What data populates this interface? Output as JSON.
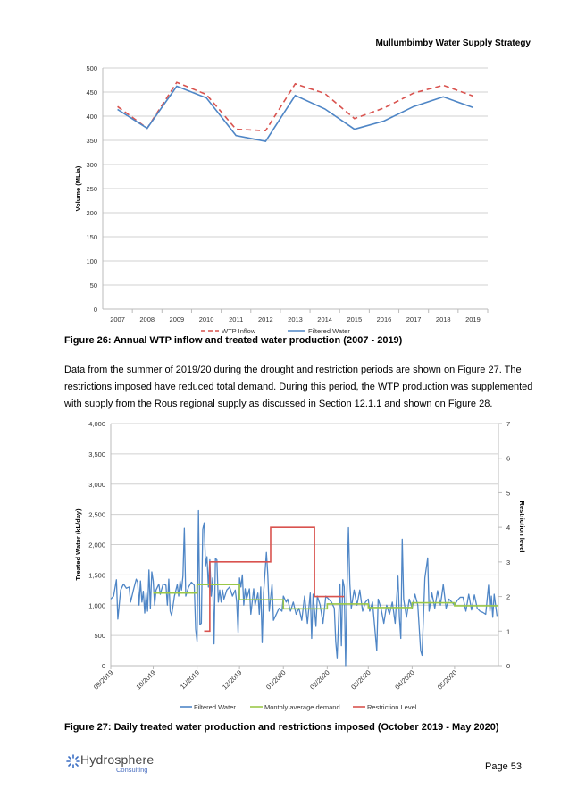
{
  "header": {
    "title": "Mullumbimby Water Supply Strategy"
  },
  "figure26": {
    "caption": "Figure 26: Annual WTP inflow and treated water production (2007 - 2019)"
  },
  "paragraph": "Data from the summer of 2019/20 during the drought and restriction periods are shown on Figure 27. The restrictions imposed have reduced total demand. During this period, the WTP production was supplemented with supply from the Rous regional supply as discussed in Section 12.1.1 and shown on Figure 28.",
  "figure27": {
    "caption": "Figure 27: Daily treated water production and restrictions imposed (October 2019 - May 2020)"
  },
  "footer": {
    "logo_text": "Hydrosphere",
    "logo_subtext": "Consulting",
    "page": "Page 53"
  },
  "chart_data": [
    {
      "type": "line",
      "title": "",
      "xlabel": "",
      "ylabel": "Volume (ML/a)",
      "ylim": [
        0,
        500
      ],
      "yticks": [
        "0",
        "50",
        "100",
        "150",
        "200",
        "250",
        "300",
        "350",
        "400",
        "450",
        "500"
      ],
      "categories": [
        "2007",
        "2008",
        "2009",
        "2010",
        "2011",
        "2012",
        "2013",
        "2014",
        "2015",
        "2016",
        "2017",
        "2018",
        "2019"
      ],
      "grid": true,
      "legend": "bottom",
      "series": [
        {
          "name": "WTP Inflow",
          "color": "#d9534f",
          "dash": true,
          "values": [
            420,
            375,
            470,
            445,
            373,
            370,
            467,
            447,
            395,
            417,
            448,
            464,
            442
          ]
        },
        {
          "name": "Filtered Water",
          "color": "#4f86c6",
          "dash": false,
          "values": [
            414,
            375,
            462,
            438,
            360,
            348,
            443,
            415,
            373,
            390,
            420,
            440,
            418
          ]
        }
      ]
    },
    {
      "type": "line",
      "title": "",
      "xlabel": "",
      "ylabel": "Treated Water (kL/day)",
      "y2label": "Restriction level",
      "ylim": [
        0,
        4000
      ],
      "y2lim": [
        0,
        7
      ],
      "yticks": [
        "0",
        "500",
        "1,000",
        "1,500",
        "2,000",
        "2,500",
        "3,000",
        "3,500",
        "4,000"
      ],
      "y2ticks": [
        "0",
        "1",
        "2",
        "3",
        "4",
        "5",
        "6",
        "7"
      ],
      "xlim": [
        "2019-09-01",
        "2020-06-01"
      ],
      "xticks": [
        {
          "date": "2019-09-01",
          "label": "09/2019"
        },
        {
          "date": "2019-10-01",
          "label": "10/2019"
        },
        {
          "date": "2019-11-01",
          "label": "11/2019"
        },
        {
          "date": "2019-12-01",
          "label": "12/2019"
        },
        {
          "date": "2020-01-01",
          "label": "01/2020"
        },
        {
          "date": "2020-02-01",
          "label": "02/2020"
        },
        {
          "date": "2020-03-01",
          "label": "03/2020"
        },
        {
          "date": "2020-04-01",
          "label": "04/2020"
        },
        {
          "date": "2020-05-01",
          "label": "05/2020"
        }
      ],
      "grid": true,
      "legend": "bottom",
      "series": [
        {
          "name": "Filtered Water",
          "color": "#4f86c6",
          "axis": "left",
          "points": [
            [
              "2019-09-01",
              1100
            ],
            [
              "2019-09-03",
              1150
            ],
            [
              "2019-09-05",
              1420
            ],
            [
              "2019-09-06",
              770
            ],
            [
              "2019-09-08",
              1250
            ],
            [
              "2019-09-10",
              1350
            ],
            [
              "2019-09-12",
              1280
            ],
            [
              "2019-09-14",
              1300
            ],
            [
              "2019-09-15",
              1050
            ],
            [
              "2019-09-17",
              1250
            ],
            [
              "2019-09-19",
              1430
            ],
            [
              "2019-09-20",
              1380
            ],
            [
              "2019-09-21",
              1000
            ],
            [
              "2019-09-22",
              1400
            ],
            [
              "2019-09-23",
              1050
            ],
            [
              "2019-09-24",
              1230
            ],
            [
              "2019-09-25",
              870
            ],
            [
              "2019-09-26",
              1200
            ],
            [
              "2019-09-27",
              900
            ],
            [
              "2019-09-28",
              1580
            ],
            [
              "2019-09-29",
              950
            ],
            [
              "2019-09-30",
              1550
            ],
            [
              "2019-10-01",
              1400
            ],
            [
              "2019-10-02",
              1000
            ],
            [
              "2019-10-03",
              1250
            ],
            [
              "2019-10-05",
              1350
            ],
            [
              "2019-10-06",
              1180
            ],
            [
              "2019-10-08",
              1350
            ],
            [
              "2019-10-10",
              1330
            ],
            [
              "2019-10-11",
              1000
            ],
            [
              "2019-10-12",
              1430
            ],
            [
              "2019-10-13",
              900
            ],
            [
              "2019-10-14",
              830
            ],
            [
              "2019-10-16",
              1150
            ],
            [
              "2019-10-18",
              1340
            ],
            [
              "2019-10-19",
              1150
            ],
            [
              "2019-10-20",
              1400
            ],
            [
              "2019-10-21",
              1250
            ],
            [
              "2019-10-22",
              1480
            ],
            [
              "2019-10-23",
              2270
            ],
            [
              "2019-10-24",
              1150
            ],
            [
              "2019-10-26",
              1300
            ],
            [
              "2019-10-28",
              1380
            ],
            [
              "2019-10-30",
              1330
            ],
            [
              "2019-10-31",
              600
            ],
            [
              "2019-11-01",
              400
            ],
            [
              "2019-11-02",
              2560
            ],
            [
              "2019-11-03",
              680
            ],
            [
              "2019-11-04",
              700
            ],
            [
              "2019-11-05",
              2250
            ],
            [
              "2019-11-06",
              2360
            ],
            [
              "2019-11-07",
              1650
            ],
            [
              "2019-11-08",
              1800
            ],
            [
              "2019-11-09",
              1300
            ],
            [
              "2019-11-10",
              1750
            ],
            [
              "2019-11-11",
              1150
            ],
            [
              "2019-11-12",
              1450
            ],
            [
              "2019-11-13",
              360
            ],
            [
              "2019-11-14",
              1770
            ],
            [
              "2019-11-15",
              1750
            ],
            [
              "2019-11-16",
              1050
            ],
            [
              "2019-11-17",
              1250
            ],
            [
              "2019-11-18",
              1050
            ],
            [
              "2019-11-19",
              1250
            ],
            [
              "2019-11-20",
              1100
            ],
            [
              "2019-11-22",
              1250
            ],
            [
              "2019-11-24",
              1300
            ],
            [
              "2019-11-26",
              1150
            ],
            [
              "2019-11-28",
              1250
            ],
            [
              "2019-11-29",
              1050
            ],
            [
              "2019-11-30",
              550
            ],
            [
              "2019-12-01",
              1450
            ],
            [
              "2019-12-02",
              1300
            ],
            [
              "2019-12-03",
              1500
            ],
            [
              "2019-12-04",
              1000
            ],
            [
              "2019-12-05",
              1270
            ],
            [
              "2019-12-06",
              1100
            ],
            [
              "2019-12-08",
              1270
            ],
            [
              "2019-12-09",
              850
            ],
            [
              "2019-12-11",
              1270
            ],
            [
              "2019-12-12",
              1000
            ],
            [
              "2019-12-14",
              1200
            ],
            [
              "2019-12-15",
              850
            ],
            [
              "2019-12-16",
              1300
            ],
            [
              "2019-12-17",
              380
            ],
            [
              "2019-12-18",
              1200
            ],
            [
              "2019-12-20",
              1870
            ],
            [
              "2019-12-21",
              1500
            ],
            [
              "2019-12-22",
              900
            ],
            [
              "2019-12-24",
              1350
            ],
            [
              "2019-12-25",
              750
            ],
            [
              "2019-12-27",
              850
            ],
            [
              "2019-12-29",
              950
            ],
            [
              "2019-12-31",
              900
            ],
            [
              "2020-01-01",
              1150
            ],
            [
              "2020-01-03",
              1050
            ],
            [
              "2020-01-04",
              1100
            ],
            [
              "2020-01-06",
              900
            ],
            [
              "2020-01-08",
              1050
            ],
            [
              "2020-01-10",
              850
            ],
            [
              "2020-01-12",
              950
            ],
            [
              "2020-01-14",
              750
            ],
            [
              "2020-01-16",
              1150
            ],
            [
              "2020-01-18",
              700
            ],
            [
              "2020-01-20",
              1200
            ],
            [
              "2020-01-21",
              450
            ],
            [
              "2020-01-22",
              1180
            ],
            [
              "2020-01-24",
              650
            ],
            [
              "2020-01-25",
              1150
            ],
            [
              "2020-01-27",
              1000
            ],
            [
              "2020-01-29",
              700
            ],
            [
              "2020-01-31",
              1150
            ],
            [
              "2020-02-02",
              1100
            ],
            [
              "2020-02-04",
              1050
            ],
            [
              "2020-02-06",
              950
            ],
            [
              "2020-02-07",
              400
            ],
            [
              "2020-02-08",
              130
            ],
            [
              "2020-02-10",
              1350
            ],
            [
              "2020-02-11",
              330
            ],
            [
              "2020-02-12",
              1420
            ],
            [
              "2020-02-13",
              1300
            ],
            [
              "2020-02-14",
              0
            ],
            [
              "2020-02-15",
              1300
            ],
            [
              "2020-02-16",
              2280
            ],
            [
              "2020-02-17",
              1350
            ],
            [
              "2020-02-18",
              950
            ],
            [
              "2020-02-20",
              1250
            ],
            [
              "2020-02-22",
              1000
            ],
            [
              "2020-02-24",
              1250
            ],
            [
              "2020-02-26",
              900
            ],
            [
              "2020-02-28",
              1050
            ],
            [
              "2020-03-01",
              1100
            ],
            [
              "2020-03-02",
              900
            ],
            [
              "2020-03-04",
              1050
            ],
            [
              "2020-03-07",
              250
            ],
            [
              "2020-03-08",
              1100
            ],
            [
              "2020-03-10",
              950
            ],
            [
              "2020-03-12",
              700
            ],
            [
              "2020-03-14",
              1000
            ],
            [
              "2020-03-16",
              850
            ],
            [
              "2020-03-18",
              1050
            ],
            [
              "2020-03-20",
              700
            ],
            [
              "2020-03-22",
              1480
            ],
            [
              "2020-03-23",
              800
            ],
            [
              "2020-03-24",
              450
            ],
            [
              "2020-03-25",
              2090
            ],
            [
              "2020-03-26",
              1100
            ],
            [
              "2020-03-28",
              800
            ],
            [
              "2020-03-30",
              1100
            ],
            [
              "2020-04-01",
              950
            ],
            [
              "2020-04-03",
              1180
            ],
            [
              "2020-04-05",
              1000
            ],
            [
              "2020-04-07",
              250
            ],
            [
              "2020-04-08",
              170
            ],
            [
              "2020-04-10",
              1450
            ],
            [
              "2020-04-12",
              1780
            ],
            [
              "2020-04-13",
              900
            ],
            [
              "2020-04-15",
              1200
            ],
            [
              "2020-04-17",
              950
            ],
            [
              "2020-04-19",
              1240
            ],
            [
              "2020-04-21",
              1000
            ],
            [
              "2020-04-23",
              1340
            ],
            [
              "2020-04-25",
              950
            ],
            [
              "2020-04-27",
              1100
            ],
            [
              "2020-04-29",
              1050
            ],
            [
              "2020-05-01",
              1000
            ],
            [
              "2020-05-03",
              1080
            ],
            [
              "2020-05-05",
              1130
            ],
            [
              "2020-05-07",
              1130
            ],
            [
              "2020-05-09",
              900
            ],
            [
              "2020-05-11",
              1180
            ],
            [
              "2020-05-13",
              920
            ],
            [
              "2020-05-15",
              1170
            ],
            [
              "2020-05-17",
              950
            ],
            [
              "2020-05-19",
              900
            ],
            [
              "2020-05-21",
              880
            ],
            [
              "2020-05-23",
              850
            ],
            [
              "2020-05-25",
              1330
            ],
            [
              "2020-05-26",
              900
            ],
            [
              "2020-05-27",
              1150
            ],
            [
              "2020-05-28",
              800
            ],
            [
              "2020-05-29",
              1180
            ],
            [
              "2020-05-31",
              820
            ]
          ]
        },
        {
          "name": "Monthly average demand",
          "color": "#9bc848",
          "axis": "left",
          "steps": [
            [
              "2019-10-01",
              1200
            ],
            [
              "2019-11-01",
              1340
            ],
            [
              "2019-12-01",
              1090
            ],
            [
              "2020-01-01",
              940
            ],
            [
              "2020-02-01",
              1020
            ],
            [
              "2020-03-01",
              960
            ],
            [
              "2020-04-01",
              1040
            ],
            [
              "2020-05-01",
              990
            ],
            [
              "2020-06-01",
              990
            ]
          ]
        },
        {
          "name": "Restriction Level",
          "color": "#d9534f",
          "axis": "right",
          "steps": [
            [
              "2019-11-06",
              1
            ],
            [
              "2019-11-10",
              3
            ],
            [
              "2019-12-23",
              4
            ],
            [
              "2020-01-23",
              2
            ],
            [
              "2020-02-13",
              2
            ]
          ]
        }
      ]
    }
  ]
}
